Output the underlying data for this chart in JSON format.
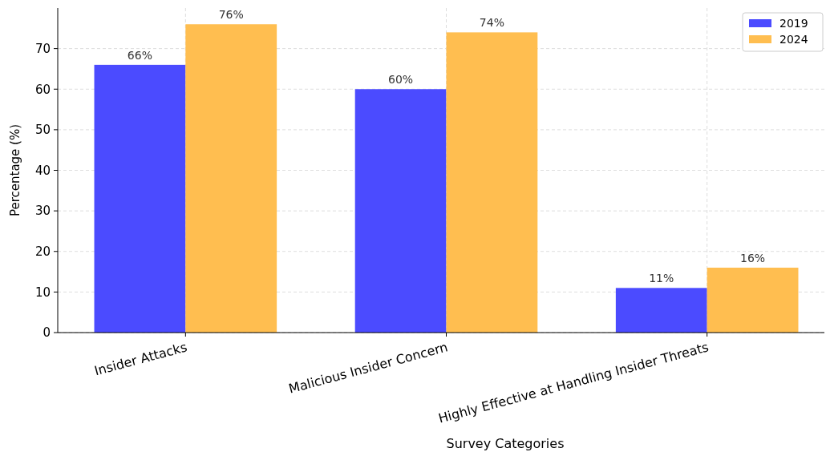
{
  "chart_data": {
    "type": "bar",
    "xlabel": "Survey Categories",
    "ylabel": "Percentage (%)",
    "categories": [
      "Insider Attacks",
      "Malicious Insider Concern",
      "Highly Effective at Handling Insider Threats"
    ],
    "series": [
      {
        "name": "2019",
        "color": "#4b4bff",
        "values": [
          66,
          60,
          11
        ],
        "value_labels": [
          "66%",
          "60%",
          "11%"
        ]
      },
      {
        "name": "2024",
        "color": "#ffbe50",
        "values": [
          76,
          74,
          16
        ],
        "value_labels": [
          "76%",
          "74%",
          "16%"
        ]
      }
    ],
    "ylim": [
      0,
      80
    ],
    "yticks": [
      0,
      10,
      20,
      30,
      40,
      50,
      60,
      70
    ],
    "grid": true,
    "legend": "top right"
  }
}
